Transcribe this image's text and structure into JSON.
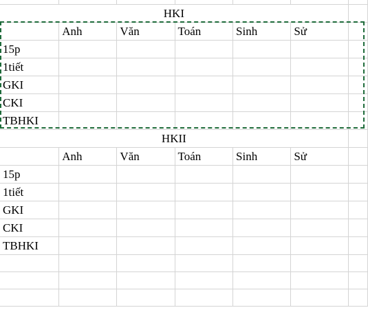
{
  "sheet": {
    "colors": {
      "gridline": "#d4d4d4",
      "selection_border": "#1e6b3a"
    },
    "hk1": {
      "title": "HKI",
      "subjects": [
        "Anh",
        "Văn",
        "Toán",
        "Sinh",
        "Sử"
      ],
      "rows": [
        "15p",
        "1tiết",
        "GKI",
        "CKI",
        "TBHKI"
      ]
    },
    "hk2": {
      "title": "HKII",
      "subjects": [
        "Anh",
        "Văn",
        "Toán",
        "Sinh",
        "Sử"
      ],
      "rows": [
        "15p",
        "1tiết",
        "GKI",
        "CKI",
        "TBHKI"
      ]
    }
  }
}
